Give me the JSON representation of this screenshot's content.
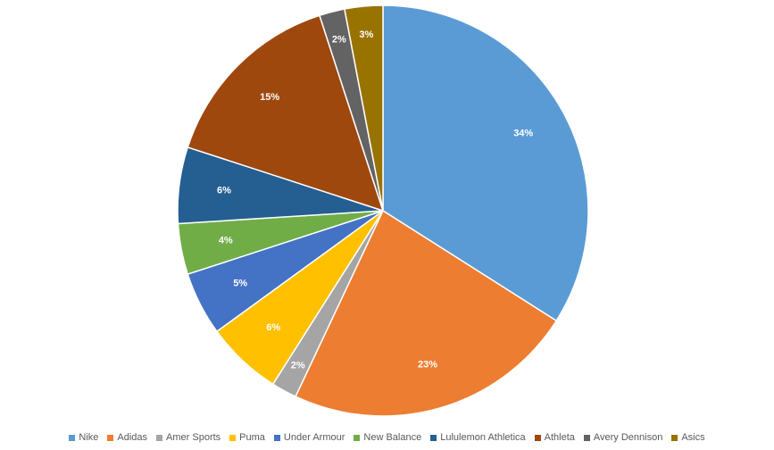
{
  "chart_data": {
    "type": "pie",
    "title": "",
    "legend_position": "bottom",
    "start_angle_deg": 0,
    "direction": "clockwise",
    "label_color": "#ffffff",
    "slices": [
      {
        "name": "Nike",
        "value": 34,
        "label": "34%",
        "color": "#5B9BD5"
      },
      {
        "name": "Adidas",
        "value": 23,
        "label": "23%",
        "color": "#ED7D31"
      },
      {
        "name": "Amer Sports",
        "value": 2,
        "label": "2%",
        "color": "#A5A5A5"
      },
      {
        "name": "Puma",
        "value": 6,
        "label": "6%",
        "color": "#FFC000"
      },
      {
        "name": "Under Armour",
        "value": 5,
        "label": "5%",
        "color": "#4472C4"
      },
      {
        "name": "New Balance",
        "value": 4,
        "label": "4%",
        "color": "#70AD47"
      },
      {
        "name": "Lululemon Athletica",
        "value": 6,
        "label": "6%",
        "color": "#255E91"
      },
      {
        "name": "Athleta",
        "value": 15,
        "label": "15%",
        "color": "#9E480E"
      },
      {
        "name": "Avery Dennison",
        "value": 2,
        "label": "2%",
        "color": "#636363"
      },
      {
        "name": "Asics",
        "value": 3,
        "label": "3%",
        "color": "#997300"
      }
    ]
  }
}
